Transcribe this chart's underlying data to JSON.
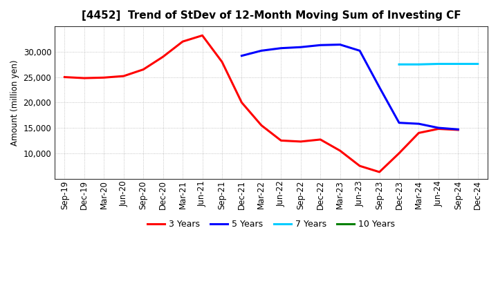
{
  "title": "[4452]  Trend of StDev of 12-Month Moving Sum of Investing CF",
  "ylabel": "Amount (million yen)",
  "background_color": "#ffffff",
  "grid_color": "#aaaaaa",
  "x_labels": [
    "Sep-19",
    "Dec-19",
    "Mar-20",
    "Jun-20",
    "Sep-20",
    "Dec-20",
    "Mar-21",
    "Jun-21",
    "Sep-21",
    "Dec-21",
    "Mar-22",
    "Jun-22",
    "Sep-22",
    "Dec-22",
    "Mar-23",
    "Jun-23",
    "Sep-23",
    "Dec-23",
    "Mar-24",
    "Jun-24",
    "Sep-24",
    "Dec-24"
  ],
  "series_3y": {
    "label": "3 Years",
    "color": "#ff0000",
    "data": [
      [
        "Sep-19",
        25000
      ],
      [
        "Dec-19",
        24800
      ],
      [
        "Mar-20",
        24900
      ],
      [
        "Jun-20",
        25200
      ],
      [
        "Sep-20",
        26500
      ],
      [
        "Dec-20",
        29000
      ],
      [
        "Mar-21",
        32000
      ],
      [
        "Jun-21",
        33200
      ],
      [
        "Sep-21",
        28000
      ],
      [
        "Dec-21",
        20000
      ],
      [
        "Mar-22",
        15500
      ],
      [
        "Jun-22",
        12500
      ],
      [
        "Sep-22",
        12300
      ],
      [
        "Dec-22",
        12700
      ],
      [
        "Mar-23",
        10500
      ],
      [
        "Jun-23",
        7500
      ],
      [
        "Sep-23",
        6300
      ],
      [
        "Dec-23",
        10000
      ],
      [
        "Mar-24",
        14000
      ],
      [
        "Jun-24",
        14800
      ],
      [
        "Sep-24",
        14600
      ]
    ]
  },
  "series_5y": {
    "label": "5 Years",
    "color": "#0000ff",
    "data": [
      [
        "Dec-21",
        29200
      ],
      [
        "Mar-22",
        30200
      ],
      [
        "Jun-22",
        30700
      ],
      [
        "Sep-22",
        30900
      ],
      [
        "Dec-22",
        31300
      ],
      [
        "Mar-23",
        31400
      ],
      [
        "Jun-23",
        30200
      ],
      [
        "Sep-23",
        23000
      ],
      [
        "Dec-23",
        16000
      ],
      [
        "Mar-24",
        15800
      ],
      [
        "Jun-24",
        15000
      ],
      [
        "Sep-24",
        14700
      ]
    ]
  },
  "series_7y": {
    "label": "7 Years",
    "color": "#00ccff",
    "data": [
      [
        "Dec-23",
        27500
      ],
      [
        "Mar-24",
        27500
      ],
      [
        "Jun-24",
        27600
      ],
      [
        "Sep-24",
        27600
      ],
      [
        "Dec-24",
        27600
      ]
    ]
  },
  "series_10y": {
    "label": "10 Years",
    "color": "#008000",
    "data": []
  },
  "ylim": [
    5000,
    35000
  ],
  "yticks": [
    10000,
    15000,
    20000,
    25000,
    30000
  ],
  "title_fontsize": 11,
  "legend_fontsize": 9,
  "axis_fontsize": 8.5,
  "linewidth": 2.2
}
